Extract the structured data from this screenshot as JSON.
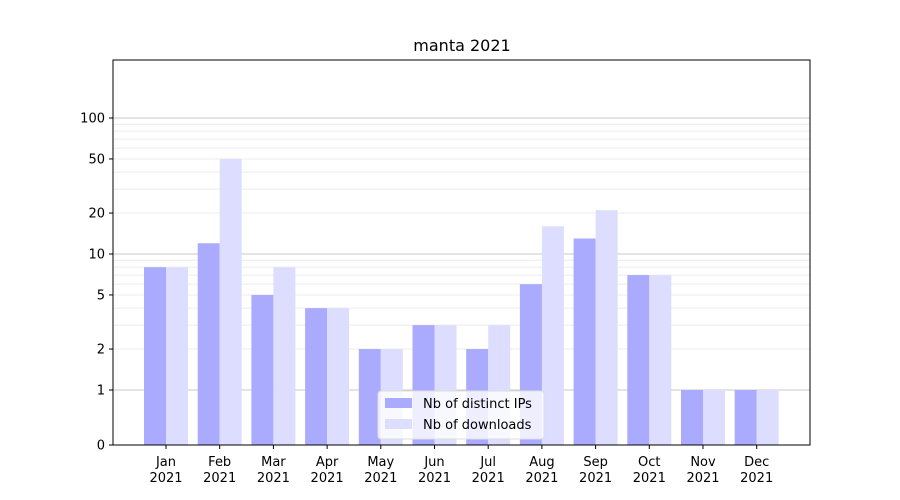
{
  "chart_data": {
    "type": "bar",
    "title": "manta 2021",
    "xlabel": "",
    "ylabel": "",
    "y_scale": "symlog",
    "y_tick_labels": [
      "0",
      "1",
      "2",
      "5",
      "10",
      "20",
      "50",
      "100"
    ],
    "y_ticks": [
      0,
      1,
      2,
      5,
      10,
      20,
      50,
      100
    ],
    "categories": [
      [
        "Jan",
        "2021"
      ],
      [
        "Feb",
        "2021"
      ],
      [
        "Mar",
        "2021"
      ],
      [
        "Apr",
        "2021"
      ],
      [
        "May",
        "2021"
      ],
      [
        "Jun",
        "2021"
      ],
      [
        "Jul",
        "2021"
      ],
      [
        "Aug",
        "2021"
      ],
      [
        "Sep",
        "2021"
      ],
      [
        "Oct",
        "2021"
      ],
      [
        "Nov",
        "2021"
      ],
      [
        "Dec",
        "2021"
      ]
    ],
    "series": [
      {
        "name": "Nb of distinct IPs",
        "color": "#aaaaff",
        "values": [
          8,
          12,
          5,
          4,
          2,
          3,
          2,
          6,
          13,
          7,
          1,
          1
        ]
      },
      {
        "name": "Nb of downloads",
        "color": "#ddddff",
        "values": [
          8,
          50,
          8,
          4,
          2,
          3,
          3,
          16,
          21,
          7,
          1,
          1
        ]
      }
    ],
    "grid": true,
    "legend_position": "lower-center"
  }
}
